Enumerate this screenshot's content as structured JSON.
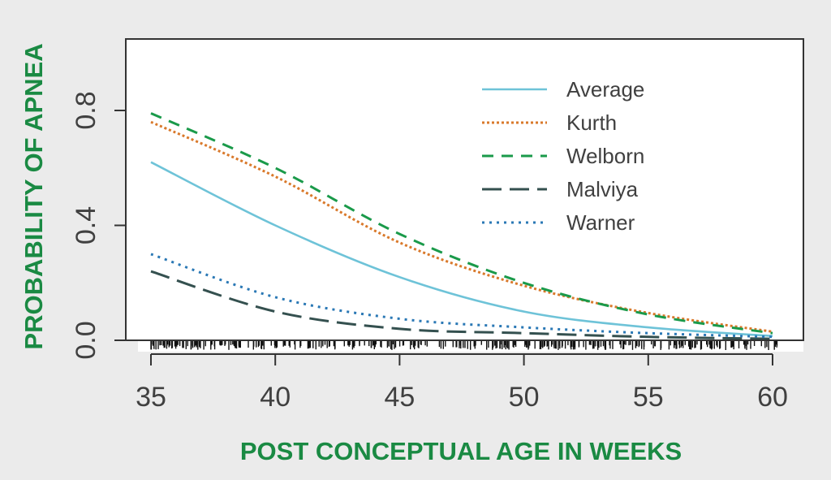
{
  "chart_data": {
    "type": "line",
    "title": "",
    "xlabel": "POST CONCEPTUAL AGE IN WEEKS",
    "ylabel": "PROBABILITY OF APNEA",
    "xlim": [
      34,
      61
    ],
    "ylim": [
      0,
      1.0
    ],
    "xticks": [
      35,
      40,
      45,
      50,
      55,
      60
    ],
    "xtick_labels": [
      "35",
      "40",
      "45",
      "50",
      "55",
      "60"
    ],
    "yticks": [
      0.0,
      0.4,
      0.8
    ],
    "ytick_labels": [
      "0.0",
      "0.4",
      "0.8"
    ],
    "grid": false,
    "legend": "top-right",
    "rug": true,
    "x": [
      35,
      40,
      45,
      50,
      55,
      60
    ],
    "series": [
      {
        "name": "Average",
        "color": "#6ec3d8",
        "dash": "solid",
        "values": [
          0.62,
          0.4,
          0.22,
          0.1,
          0.045,
          0.015
        ]
      },
      {
        "name": "Kurth",
        "color": "#d9792b",
        "dash": "dotted",
        "values": [
          0.76,
          0.57,
          0.34,
          0.19,
          0.095,
          0.03
        ]
      },
      {
        "name": "Welborn",
        "color": "#1a9a4a",
        "dash": "dashed",
        "values": [
          0.79,
          0.6,
          0.37,
          0.2,
          0.09,
          0.025
        ]
      },
      {
        "name": "Malviya",
        "color": "#34504f",
        "dash": "longdash",
        "values": [
          0.24,
          0.1,
          0.04,
          0.025,
          0.012,
          0.005
        ]
      },
      {
        "name": "Warner",
        "color": "#2a78b5",
        "dash": "fine-dotted",
        "values": [
          0.3,
          0.15,
          0.075,
          0.045,
          0.025,
          0.012
        ]
      }
    ]
  }
}
